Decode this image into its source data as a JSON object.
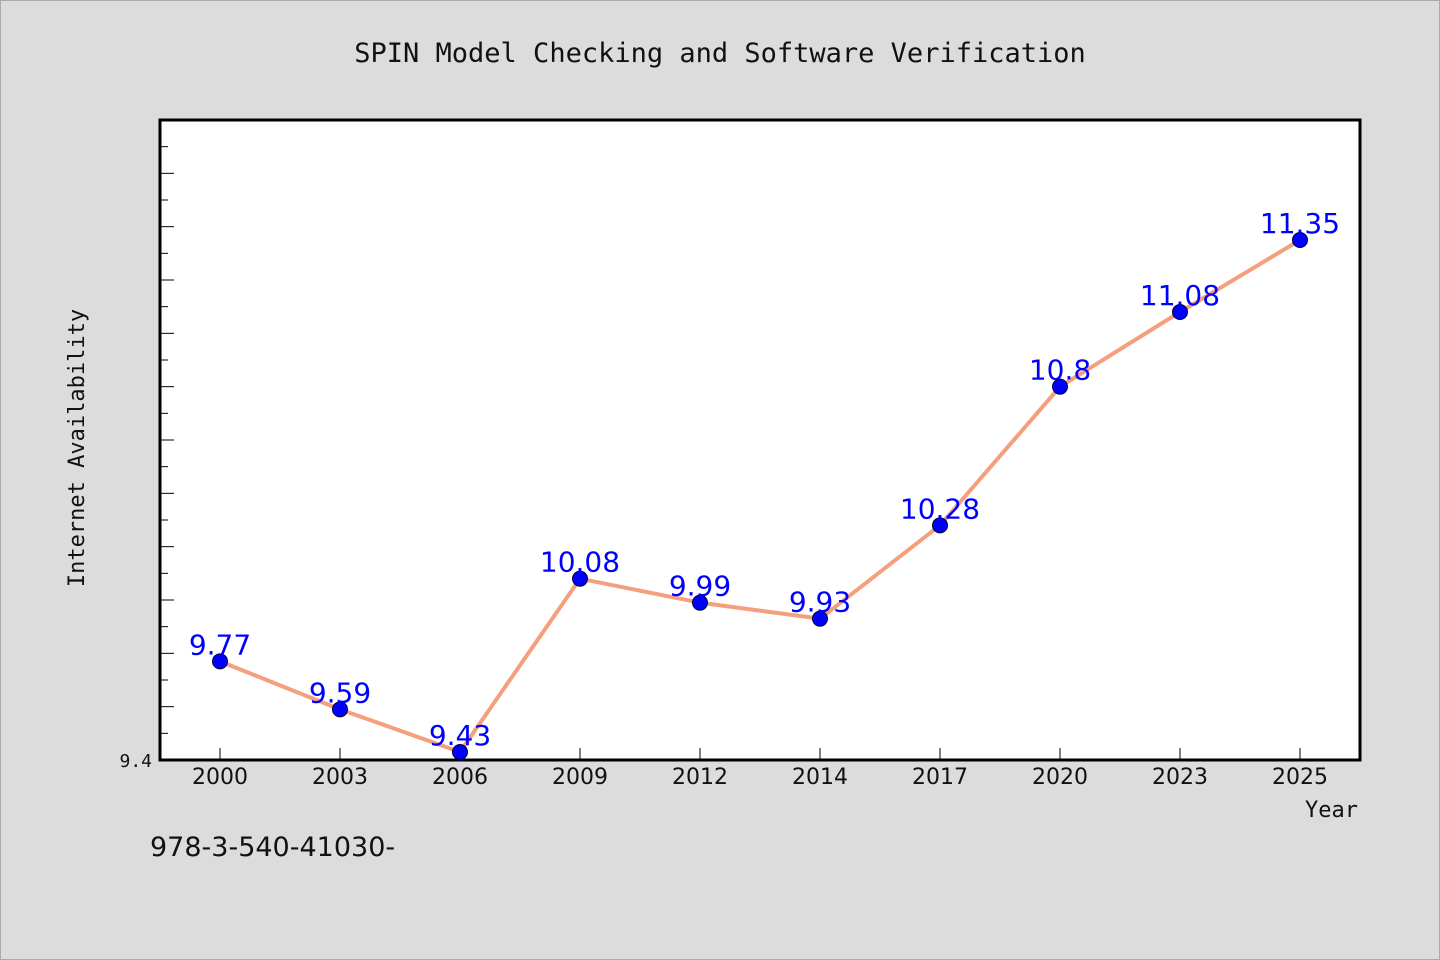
{
  "colors": {
    "background": "#dcdcdc",
    "plot_background": "#ffffff",
    "line": "#f4a07e",
    "marker": "#0000ff",
    "data_label": "#0000ff",
    "text": "#111111"
  },
  "footer": {
    "code": "978-3-540-41030-"
  },
  "chart_data": {
    "type": "line",
    "title": "SPIN Model Checking and Software Verification",
    "xlabel": "Year",
    "ylabel": "Internet Availability",
    "categories": [
      "2000",
      "2003",
      "2006",
      "2009",
      "2012",
      "2014",
      "2017",
      "2020",
      "2023",
      "2025"
    ],
    "series": [
      {
        "values": [
          9.77,
          9.59,
          9.43,
          10.08,
          9.99,
          9.93,
          10.28,
          10.8,
          11.08,
          11.35
        ]
      }
    ],
    "data_labels": [
      "9.77",
      "9.59",
      "9.43",
      "10.08",
      "9.99",
      "9.93",
      "10.28",
      "10.8",
      "11.08",
      "11.35"
    ],
    "y_tick_label": "9.4",
    "ylim": [
      9.4,
      11.8
    ],
    "grid": false,
    "legend": "none"
  }
}
